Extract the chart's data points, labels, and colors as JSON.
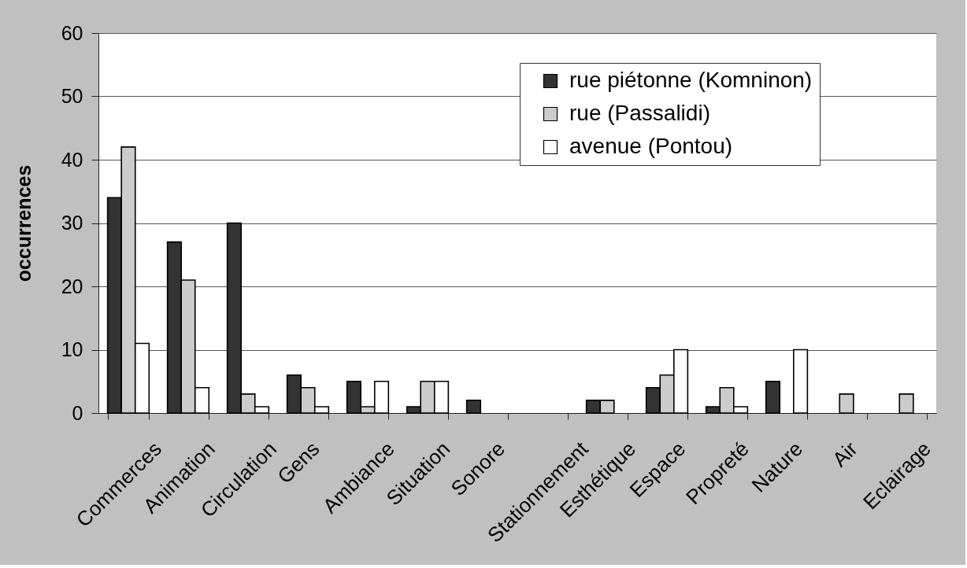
{
  "chart_data": {
    "type": "bar",
    "ylabel": "occurrences",
    "categories": [
      "Commerces",
      "Animation",
      "Circulation",
      "Gens",
      "Ambiance",
      "Situation",
      "Sonore",
      "Stationnement",
      "Esthétique",
      "Espace",
      "Propreté",
      "Nature",
      "Air",
      "Eclairage"
    ],
    "series": [
      {
        "name": "rue piétonne (Komninon)",
        "color": "#333333",
        "values": [
          34,
          27,
          30,
          6,
          5,
          1,
          2,
          0,
          2,
          4,
          1,
          5,
          0,
          0
        ]
      },
      {
        "name": "rue (Passalidi)",
        "color": "#cccccc",
        "values": [
          42,
          21,
          3,
          4,
          1,
          5,
          0,
          0,
          2,
          6,
          4,
          0,
          3,
          3
        ]
      },
      {
        "name": "avenue (Pontou)",
        "color": "#ffffff",
        "values": [
          11,
          4,
          1,
          1,
          5,
          5,
          0,
          0,
          0,
          10,
          1,
          10,
          0,
          0
        ]
      }
    ],
    "ylim": [
      0,
      60
    ],
    "yticks": [
      0,
      10,
      20,
      30,
      40,
      50,
      60
    ],
    "grid": "y",
    "legend": "top right"
  }
}
